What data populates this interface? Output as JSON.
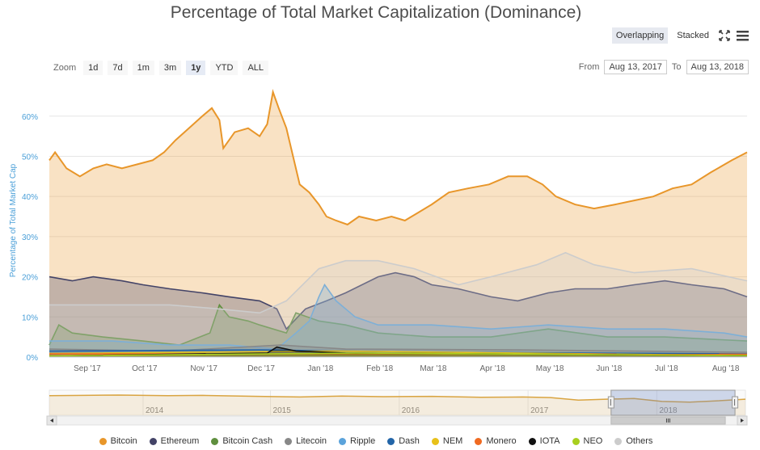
{
  "title": "Percentage of Total Market Capitalization (Dominance)",
  "view": {
    "overlapping": "Overlapping",
    "stacked": "Stacked",
    "active": "overlapping"
  },
  "icons": {
    "fullscreen": "expand-arrows-icon",
    "menu": "hamburger-menu-icon"
  },
  "zoom": {
    "label": "Zoom",
    "buttons": [
      "1d",
      "7d",
      "1m",
      "3m",
      "1y",
      "YTD",
      "ALL"
    ],
    "active": "1y"
  },
  "range": {
    "from_label": "From",
    "from_value": "Aug 13, 2017",
    "to_label": "To",
    "to_value": "Aug 13, 2018"
  },
  "chart_data": {
    "type": "area",
    "ylabel": "Percentage of Total Market Cap",
    "y_ticks": [
      "0%",
      "10%",
      "20%",
      "30%",
      "40%",
      "50%",
      "60%"
    ],
    "ylim": [
      0,
      68
    ],
    "x_ticks": [
      "Sep '17",
      "Oct '17",
      "Nov '17",
      "Dec '17",
      "Jan '18",
      "Feb '18",
      "Mar '18",
      "Apr '18",
      "May '18",
      "Jun '18",
      "Jul '18",
      "Aug '18"
    ],
    "x_range": [
      "2017-08-13",
      "2018-08-13"
    ],
    "grid": true,
    "legend_position": "bottom",
    "series": [
      {
        "name": "Bitcoin",
        "color": "#e8962a",
        "fill": true,
        "points": [
          [
            "2017-08-13",
            49
          ],
          [
            "2017-08-16",
            51
          ],
          [
            "2017-08-22",
            47
          ],
          [
            "2017-08-29",
            45
          ],
          [
            "2017-09-05",
            47
          ],
          [
            "2017-09-12",
            48
          ],
          [
            "2017-09-20",
            47
          ],
          [
            "2017-09-28",
            48
          ],
          [
            "2017-10-06",
            49
          ],
          [
            "2017-10-12",
            51
          ],
          [
            "2017-10-18",
            54
          ],
          [
            "2017-10-25",
            57
          ],
          [
            "2017-11-01",
            60
          ],
          [
            "2017-11-06",
            62
          ],
          [
            "2017-11-10",
            59
          ],
          [
            "2017-11-12",
            52
          ],
          [
            "2017-11-18",
            56
          ],
          [
            "2017-11-25",
            57
          ],
          [
            "2017-12-01",
            55
          ],
          [
            "2017-12-05",
            58
          ],
          [
            "2017-12-08",
            66
          ],
          [
            "2017-12-11",
            62
          ],
          [
            "2017-12-15",
            57
          ],
          [
            "2017-12-19",
            49
          ],
          [
            "2017-12-22",
            43
          ],
          [
            "2017-12-27",
            41
          ],
          [
            "2018-01-01",
            38
          ],
          [
            "2018-01-05",
            35
          ],
          [
            "2018-01-10",
            34
          ],
          [
            "2018-01-16",
            33
          ],
          [
            "2018-01-22",
            35
          ],
          [
            "2018-01-31",
            34
          ],
          [
            "2018-02-08",
            35
          ],
          [
            "2018-02-15",
            34
          ],
          [
            "2018-02-22",
            36
          ],
          [
            "2018-03-01",
            38
          ],
          [
            "2018-03-10",
            41
          ],
          [
            "2018-03-20",
            42
          ],
          [
            "2018-03-31",
            43
          ],
          [
            "2018-04-10",
            45
          ],
          [
            "2018-04-20",
            45
          ],
          [
            "2018-04-28",
            43
          ],
          [
            "2018-05-05",
            40
          ],
          [
            "2018-05-15",
            38
          ],
          [
            "2018-05-25",
            37
          ],
          [
            "2018-06-05",
            38
          ],
          [
            "2018-06-15",
            39
          ],
          [
            "2018-06-25",
            40
          ],
          [
            "2018-07-05",
            42
          ],
          [
            "2018-07-15",
            43
          ],
          [
            "2018-07-25",
            46
          ],
          [
            "2018-08-05",
            49
          ],
          [
            "2018-08-13",
            51
          ]
        ]
      },
      {
        "name": "Ethereum",
        "color": "#434367",
        "fill": true,
        "points": [
          [
            "2017-08-13",
            20
          ],
          [
            "2017-08-25",
            19
          ],
          [
            "2017-09-05",
            20
          ],
          [
            "2017-09-20",
            19
          ],
          [
            "2017-10-01",
            18
          ],
          [
            "2017-10-15",
            17
          ],
          [
            "2017-11-01",
            16
          ],
          [
            "2017-11-15",
            15
          ],
          [
            "2017-12-01",
            14
          ],
          [
            "2017-12-10",
            12
          ],
          [
            "2017-12-15",
            7
          ],
          [
            "2017-12-25",
            12
          ],
          [
            "2018-01-05",
            14
          ],
          [
            "2018-01-15",
            16
          ],
          [
            "2018-02-01",
            20
          ],
          [
            "2018-02-10",
            21
          ],
          [
            "2018-02-20",
            20
          ],
          [
            "2018-03-01",
            18
          ],
          [
            "2018-03-15",
            17
          ],
          [
            "2018-04-01",
            15
          ],
          [
            "2018-04-15",
            14
          ],
          [
            "2018-05-01",
            16
          ],
          [
            "2018-05-15",
            17
          ],
          [
            "2018-06-01",
            17
          ],
          [
            "2018-06-15",
            18
          ],
          [
            "2018-07-01",
            19
          ],
          [
            "2018-07-15",
            18
          ],
          [
            "2018-08-01",
            17
          ],
          [
            "2018-08-13",
            15
          ]
        ]
      },
      {
        "name": "Bitcoin Cash",
        "color": "#5f8f3e",
        "fill": true,
        "points": [
          [
            "2017-08-13",
            3
          ],
          [
            "2017-08-18",
            8
          ],
          [
            "2017-08-25",
            6
          ],
          [
            "2017-09-10",
            5
          ],
          [
            "2017-10-01",
            4
          ],
          [
            "2017-10-20",
            3
          ],
          [
            "2017-11-05",
            6
          ],
          [
            "2017-11-10",
            13
          ],
          [
            "2017-11-15",
            10
          ],
          [
            "2017-11-25",
            9
          ],
          [
            "2017-12-01",
            8
          ],
          [
            "2017-12-15",
            6
          ],
          [
            "2017-12-20",
            11
          ],
          [
            "2018-01-01",
            9
          ],
          [
            "2018-01-15",
            8
          ],
          [
            "2018-02-01",
            6
          ],
          [
            "2018-03-01",
            5
          ],
          [
            "2018-04-01",
            5
          ],
          [
            "2018-05-01",
            7
          ],
          [
            "2018-06-01",
            5
          ],
          [
            "2018-07-01",
            5
          ],
          [
            "2018-08-13",
            4
          ]
        ]
      },
      {
        "name": "Ripple",
        "color": "#5ba3db",
        "fill": true,
        "points": [
          [
            "2017-08-13",
            4
          ],
          [
            "2017-09-15",
            4
          ],
          [
            "2017-10-15",
            3
          ],
          [
            "2017-11-15",
            3
          ],
          [
            "2017-12-10",
            2
          ],
          [
            "2017-12-20",
            6
          ],
          [
            "2017-12-27",
            9
          ],
          [
            "2018-01-01",
            15
          ],
          [
            "2018-01-04",
            18
          ],
          [
            "2018-01-10",
            14
          ],
          [
            "2018-01-20",
            10
          ],
          [
            "2018-02-01",
            8
          ],
          [
            "2018-03-01",
            8
          ],
          [
            "2018-04-01",
            7
          ],
          [
            "2018-05-01",
            8
          ],
          [
            "2018-06-01",
            7
          ],
          [
            "2018-07-01",
            7
          ],
          [
            "2018-08-01",
            6
          ],
          [
            "2018-08-13",
            5
          ]
        ]
      },
      {
        "name": "Others",
        "color": "#cccccc",
        "fill": true,
        "points": [
          [
            "2017-08-13",
            13
          ],
          [
            "2017-09-15",
            13
          ],
          [
            "2017-10-15",
            13
          ],
          [
            "2017-11-10",
            12
          ],
          [
            "2017-12-01",
            11
          ],
          [
            "2017-12-15",
            14
          ],
          [
            "2018-01-01",
            22
          ],
          [
            "2018-01-15",
            24
          ],
          [
            "2018-02-01",
            24
          ],
          [
            "2018-02-20",
            22
          ],
          [
            "2018-03-15",
            18
          ],
          [
            "2018-04-01",
            20
          ],
          [
            "2018-04-25",
            23
          ],
          [
            "2018-05-10",
            26
          ],
          [
            "2018-05-25",
            23
          ],
          [
            "2018-06-15",
            21
          ],
          [
            "2018-07-15",
            22
          ],
          [
            "2018-08-13",
            19
          ]
        ]
      },
      {
        "name": "Litecoin",
        "color": "#888888",
        "fill": true,
        "points": [
          [
            "2017-08-13",
            2
          ],
          [
            "2017-10-15",
            1.5
          ],
          [
            "2017-12-12",
            3
          ],
          [
            "2018-01-15",
            2
          ],
          [
            "2018-04-15",
            1.8
          ],
          [
            "2018-08-13",
            1.2
          ]
        ]
      },
      {
        "name": "Dash",
        "color": "#2265a8",
        "fill": true,
        "points": [
          [
            "2017-08-13",
            1.5
          ],
          [
            "2017-12-01",
            1.8
          ],
          [
            "2018-03-01",
            1.2
          ],
          [
            "2018-08-13",
            0.8
          ]
        ]
      },
      {
        "name": "NEM",
        "color": "#e8c11a",
        "fill": true,
        "points": [
          [
            "2017-08-13",
            0.9
          ],
          [
            "2018-01-10",
            1.5
          ],
          [
            "2018-08-13",
            0.4
          ]
        ]
      },
      {
        "name": "Monero",
        "color": "#f06a21",
        "fill": true,
        "points": [
          [
            "2017-08-13",
            0.8
          ],
          [
            "2018-08-13",
            0.7
          ]
        ]
      },
      {
        "name": "IOTA",
        "color": "#111111",
        "fill": true,
        "points": [
          [
            "2017-08-13",
            0.3
          ],
          [
            "2017-12-05",
            1
          ],
          [
            "2017-12-10",
            2.5
          ],
          [
            "2017-12-20",
            1.5
          ],
          [
            "2018-01-15",
            1
          ],
          [
            "2018-08-13",
            0.4
          ]
        ]
      },
      {
        "name": "NEO",
        "color": "#a8cf1f",
        "fill": true,
        "points": [
          [
            "2017-08-13",
            0.3
          ],
          [
            "2018-01-20",
            1
          ],
          [
            "2018-08-13",
            0.4
          ]
        ]
      }
    ],
    "legend": [
      "Bitcoin",
      "Ethereum",
      "Bitcoin Cash",
      "Litecoin",
      "Ripple",
      "Dash",
      "NEM",
      "Monero",
      "IOTA",
      "NEO",
      "Others"
    ],
    "navigator": {
      "year_labels": [
        "2014",
        "2015",
        "2016",
        "2017",
        "2018"
      ],
      "series_color": "#d9a441",
      "points": [
        [
          0,
          56
        ],
        [
          0.05,
          57
        ],
        [
          0.1,
          58
        ],
        [
          0.17,
          56
        ],
        [
          0.22,
          57
        ],
        [
          0.3,
          54
        ],
        [
          0.36,
          52
        ],
        [
          0.42,
          55
        ],
        [
          0.48,
          53
        ],
        [
          0.55,
          54
        ],
        [
          0.62,
          51
        ],
        [
          0.68,
          52
        ],
        [
          0.72,
          50
        ],
        [
          0.76,
          42
        ],
        [
          0.8,
          45
        ],
        [
          0.84,
          47
        ],
        [
          0.88,
          38
        ],
        [
          0.92,
          36
        ],
        [
          0.96,
          40
        ],
        [
          1,
          45
        ]
      ],
      "selection": [
        0.807,
        0.985
      ]
    }
  }
}
